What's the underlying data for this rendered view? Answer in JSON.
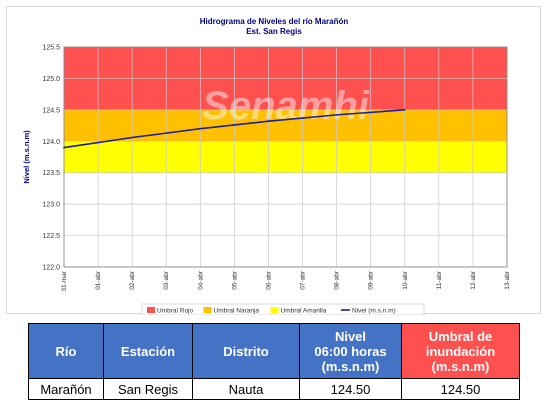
{
  "chart_data": {
    "type": "line",
    "title": "Hidrograma de Niveles del río Marañón",
    "subtitle": "Est. San Regis",
    "ylabel": "Nivel (m.s.n.m)",
    "xlabel": "",
    "watermark": "Senamhi",
    "ylim": [
      122.0,
      125.5
    ],
    "yticks": [
      "122.0",
      "122.5",
      "123.0",
      "123.5",
      "124.0",
      "124.5",
      "125.0",
      "125.5"
    ],
    "categories": [
      "31-mar",
      "01-abr",
      "02-abr",
      "03-abr",
      "04-abr",
      "05-abr",
      "06-abr",
      "07-abr",
      "08-abr",
      "09-abr",
      "10-abr",
      "11-abr",
      "12-abr",
      "13-abr"
    ],
    "grid": true,
    "legend_position": "bottom",
    "bands": [
      {
        "name": "Umbral Rojo",
        "from": 124.5,
        "to": 125.5,
        "color": "#ff5050"
      },
      {
        "name": "Umbral Naranja",
        "from": 124.0,
        "to": 124.5,
        "color": "#ffc000"
      },
      {
        "name": "Umbral Amarilla",
        "from": 123.5,
        "to": 124.0,
        "color": "#ffff00"
      }
    ],
    "series": [
      {
        "name": "Nivel (m.s.n.m)",
        "color": "#1f1f8f",
        "x": [
          0,
          1,
          2,
          3,
          4,
          5,
          6,
          7,
          8,
          9,
          10
        ],
        "values": [
          123.9,
          123.98,
          124.06,
          124.13,
          124.2,
          124.26,
          124.32,
          124.37,
          124.42,
          124.46,
          124.5
        ]
      }
    ]
  },
  "table": {
    "headers": {
      "rio": "Río",
      "estacion": "Estación",
      "distrito": "Distrito",
      "nivel_1": "Nivel",
      "nivel_2": "06:00 horas",
      "nivel_3": "(m.s.n.m)",
      "umbral_1": "Umbral de",
      "umbral_2": "inundación",
      "umbral_3": "(m.s.n.m)"
    },
    "row": {
      "rio": "Marañón",
      "estacion": "San Regis",
      "distrito": "Nauta",
      "nivel": "124.50",
      "umbral": "124.50"
    }
  }
}
